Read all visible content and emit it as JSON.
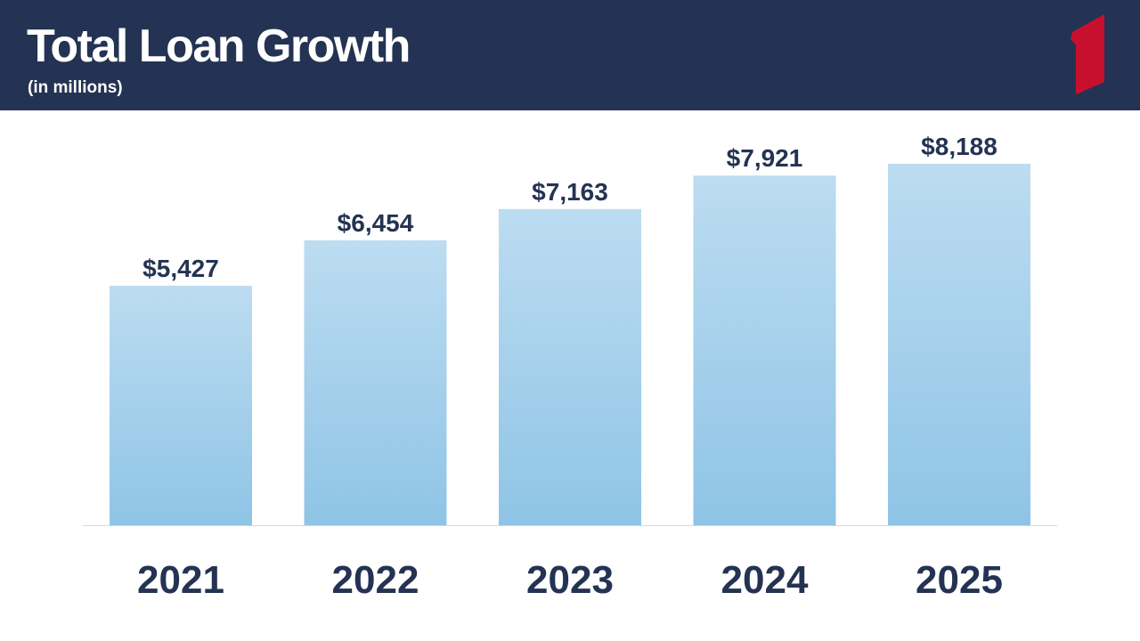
{
  "header": {
    "title": "Total Loan Growth",
    "subtitle": "(in millions)"
  },
  "colors": {
    "header_bg": "#243353",
    "bar_top": "#bcdcf1",
    "bar_bottom": "#8fc4e6",
    "logo_red": "#c8102e",
    "label_text": "#243353"
  },
  "icons": {
    "logo": "red-numeral-one-logo-icon"
  },
  "chart_data": {
    "type": "bar",
    "title": "Total Loan Growth",
    "subtitle": "(in millions)",
    "categories": [
      "2021",
      "2022",
      "2023",
      "2024",
      "2025"
    ],
    "values": [
      5427,
      6454,
      7163,
      7921,
      8188
    ],
    "value_labels": [
      "$5,427",
      "$6,454",
      "$7,163",
      "$7,921",
      "$8,188"
    ],
    "xlabel": "",
    "ylabel": "",
    "ylim": [
      0,
      8188
    ],
    "grid": false,
    "legend": "none"
  }
}
